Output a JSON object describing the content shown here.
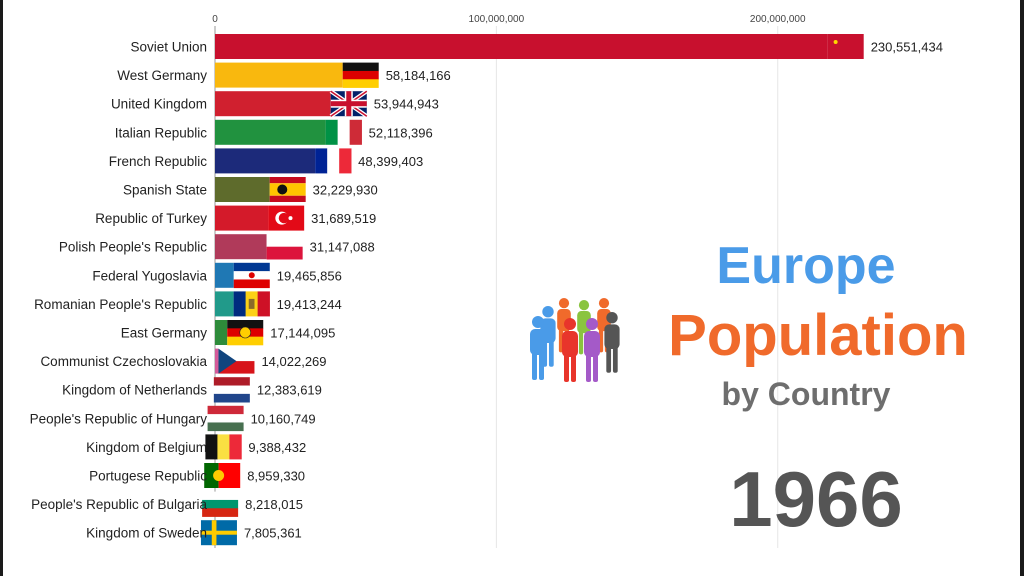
{
  "chart_data": {
    "type": "bar",
    "orientation": "horizontal",
    "title": "Europe Population by Country",
    "year": "1966",
    "xlim": [
      0,
      250000000
    ],
    "x_ticks": [
      {
        "value": 0,
        "label": "0"
      },
      {
        "value": 100000000,
        "label": "100,000,000"
      },
      {
        "value": 200000000,
        "label": "200,000,000"
      }
    ],
    "grid": true,
    "categories": [
      "Soviet Union",
      "West Germany",
      "United Kingdom",
      "Italian Republic",
      "French Republic",
      "Spanish State",
      "Republic of Turkey",
      "Polish People's Republic",
      "Federal Yugoslavia",
      "Romanian People's Republic",
      "East Germany",
      "Communist Czechoslovakia",
      "Kingdom of Netherlands",
      "People's Republic of Hungary",
      "Kingdom of Belgium",
      "Portugese Republic",
      "People's Republic of Bulgaria",
      "Kingdom of Sweden"
    ],
    "values": [
      230551434,
      58184166,
      53944943,
      52118396,
      48399403,
      32229930,
      31689519,
      31147088,
      19465856,
      19413244,
      17144095,
      14022269,
      12383619,
      10160749,
      9388432,
      8959330,
      8218015,
      7805361
    ],
    "value_labels": [
      "230,551,434",
      "58,184,166",
      "53,944,943",
      "52,118,396",
      "48,399,403",
      "32,229,930",
      "31,689,519",
      "31,147,088",
      "19,465,856",
      "19,413,244",
      "17,144,095",
      "14,022,269",
      "12,383,619",
      "10,160,749",
      "9,388,432",
      "8,959,330",
      "8,218,015",
      "7,805,361"
    ],
    "bar_colors": [
      "#c8102e",
      "#f9b80e",
      "#d0202f",
      "#21923f",
      "#1c2a7a",
      "#5e6b2c",
      "#d41a2a",
      "#b03a5a",
      "#1f78b4",
      "#219a8a",
      "#2e8b3a",
      "#d45a9a",
      "#b0654a",
      "#2a8a9a",
      "#8a4ab0",
      "#7a7a28",
      "#b05a50",
      "#2a6aa8"
    ],
    "flags": [
      {
        "type": "solid",
        "colors": [
          "#c8102e"
        ],
        "emblem": "hammer-sickle"
      },
      {
        "type": "h",
        "colors": [
          "#111111",
          "#dd0000",
          "#ffce00"
        ]
      },
      {
        "type": "uk",
        "colors": [
          "#012169",
          "#ffffff",
          "#c8102e"
        ]
      },
      {
        "type": "v",
        "colors": [
          "#009246",
          "#ffffff",
          "#ce2b37"
        ]
      },
      {
        "type": "v",
        "colors": [
          "#002395",
          "#ffffff",
          "#ed2939"
        ]
      },
      {
        "type": "h3w",
        "colors": [
          "#c60b1e",
          "#ffc400",
          "#c60b1e"
        ],
        "emblem": "eagle"
      },
      {
        "type": "solid",
        "colors": [
          "#e30a17"
        ],
        "emblem": "crescent"
      },
      {
        "type": "h",
        "colors": [
          "#ffffff",
          "#dc143c"
        ]
      },
      {
        "type": "h",
        "colors": [
          "#003893",
          "#ffffff",
          "#de0000"
        ],
        "emblem": "star"
      },
      {
        "type": "v",
        "colors": [
          "#002b7f",
          "#fcd116",
          "#ce1126"
        ],
        "emblem": "coat-of-arms"
      },
      {
        "type": "h",
        "colors": [
          "#111111",
          "#dd0000",
          "#ffce00"
        ],
        "emblem": "hammer-compass"
      },
      {
        "type": "cz",
        "colors": [
          "#ffffff",
          "#d7141a",
          "#11457e"
        ]
      },
      {
        "type": "h",
        "colors": [
          "#ae1c28",
          "#ffffff",
          "#21468b"
        ]
      },
      {
        "type": "h",
        "colors": [
          "#ce2939",
          "#ffffff",
          "#477050"
        ]
      },
      {
        "type": "v",
        "colors": [
          "#111111",
          "#fae042",
          "#ed2939"
        ]
      },
      {
        "type": "pt",
        "colors": [
          "#006600",
          "#ff0000"
        ]
      },
      {
        "type": "h",
        "colors": [
          "#ffffff",
          "#00966e",
          "#d62612"
        ]
      },
      {
        "type": "cross",
        "colors": [
          "#006aa7",
          "#fecc00"
        ]
      }
    ]
  },
  "title": {
    "line1": "Europe",
    "line2": "Population",
    "line3": "by Country"
  },
  "year_label": "1966",
  "people_icon": {
    "icon": "group-of-people-icon",
    "colors": [
      "#4a9be8",
      "#f06a2b",
      "#8ac43f",
      "#e8352b",
      "#a45ac8",
      "#555555"
    ]
  }
}
